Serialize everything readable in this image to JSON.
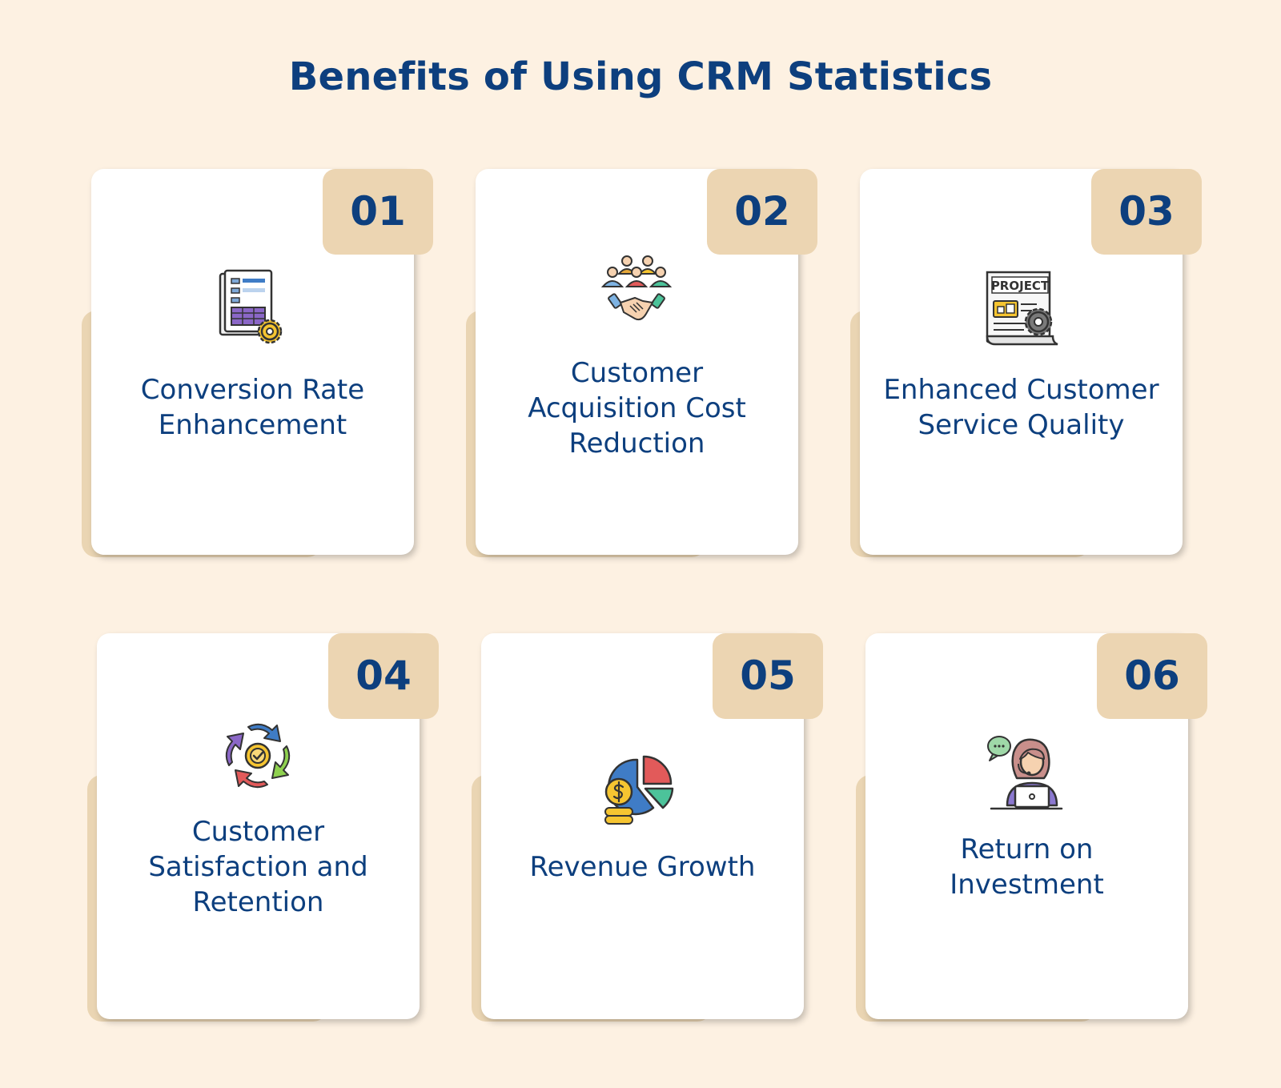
{
  "title": "Benefits of Using CRM Statistics",
  "colors": {
    "background": "#fdf1e2",
    "accent": "#ecd5b2",
    "heading": "#0d3f7e",
    "card": "#ffffff"
  },
  "cards": [
    {
      "number": "01",
      "icon": "report-settings-icon",
      "label_lines": [
        "Conversion Rate",
        "Enhancement"
      ]
    },
    {
      "number": "02",
      "icon": "team-handshake-icon",
      "label_lines": [
        "Customer",
        "Acquisition Cost",
        "Reduction"
      ]
    },
    {
      "number": "03",
      "icon": "project-document-gear-icon",
      "project_text": "PROJECT",
      "label_lines": [
        "Enhanced Customer",
        "Service Quality"
      ]
    },
    {
      "number": "04",
      "icon": "retention-cycle-icon",
      "label_lines": [
        "Customer",
        "Satisfaction and",
        "Retention"
      ]
    },
    {
      "number": "05",
      "icon": "revenue-pie-coins-icon",
      "label_lines": [
        "Revenue Growth"
      ]
    },
    {
      "number": "06",
      "icon": "support-agent-laptop-icon",
      "label_lines": [
        "Return on",
        "Investment"
      ]
    }
  ]
}
